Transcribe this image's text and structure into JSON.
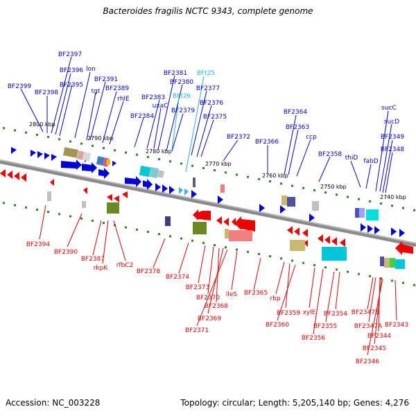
{
  "title": "Bacteroides fragilis NCTC 9343, complete genome",
  "footer": {
    "accession": "Accession: NC_003228",
    "topology": "Topology: circular; Length: 5,205,140 bp; Genes: 4,276"
  },
  "colors": {
    "forward_gene": "#0000dd",
    "reverse_gene": "#ee0000",
    "trna_label": "#22b8dd",
    "backbone": "#777777",
    "tick": "#228822"
  },
  "scale_labels": [
    "2800 kbp",
    "2790 kbp",
    "2780 kbp",
    "2770 kbp",
    "2760 kbp",
    "2750 kbp",
    "2740 kbp"
  ],
  "top_labels": [
    "BF2397",
    "BF2396",
    "lon",
    "BF2395",
    "BF2399",
    "BF2398",
    "BF2391",
    "tgt",
    "BF2389",
    "rhlE",
    "BF2381",
    "BFt25",
    "BF2380",
    "BF2377",
    "BF2383",
    "uxaC",
    "BFt26",
    "BF2376",
    "BF2379",
    "BF2384",
    "BF2375",
    "BF2372",
    "BF2364",
    "BF2363",
    "BF2366",
    "ccp",
    "BF2358",
    "thiD",
    "fabD",
    "sucC",
    "sucD",
    "BF2349",
    "BF2348"
  ],
  "bottom_labels": [
    "BF2394",
    "BF2390",
    "BF2387",
    "rkpK",
    "rfbC2",
    "BF2378",
    "BF2374",
    "BF2373",
    "BF2370",
    "BF2368",
    "BF2369",
    "BF2371",
    "ileS",
    "BF2365",
    "rbp",
    "BF2359",
    "BF2360",
    "xylE",
    "BF2356",
    "BF2355",
    "BF2354",
    "BF2347B",
    "BF2347A",
    "BF2344",
    "BF2345",
    "BF2346",
    "BF2343"
  ]
}
